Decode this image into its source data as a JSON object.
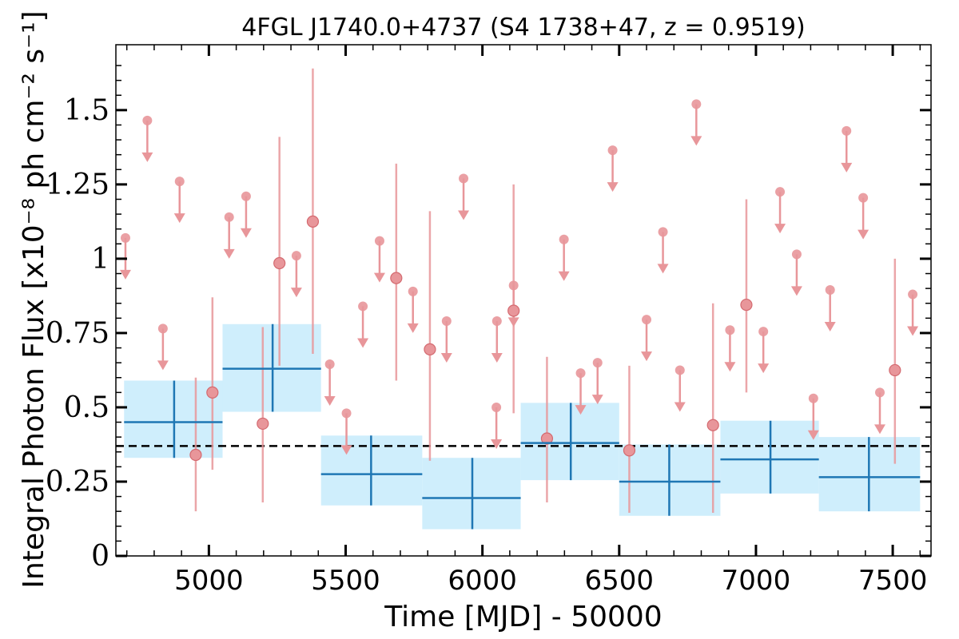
{
  "chart_data": {
    "type": "scatter",
    "title": "4FGL J1740.0+4737 (S4 1738+47, z = 0.9519)",
    "xlabel": "Time [MJD] - 50000",
    "ylabel": "Integral Photon Flux [x10⁻⁸ ph cm⁻² s⁻¹]",
    "xlim": [
      4660,
      7640
    ],
    "ylim": [
      0,
      1.72
    ],
    "x_ticks": [
      5000,
      5500,
      6000,
      6500,
      7000,
      7500
    ],
    "x_tick_labels": [
      "5000",
      "5500",
      "6000",
      "6500",
      "7000",
      "7500"
    ],
    "y_ticks": [
      0,
      0.25,
      0.5,
      0.75,
      1,
      1.25,
      1.5
    ],
    "y_tick_labels": [
      "0",
      "0.25",
      "0.5",
      "0.75",
      "1",
      "1.25",
      "1.5"
    ],
    "mean_flux": 0.37,
    "colors": {
      "bin_fill": "#cfeefc",
      "bin_line": "#1f77b4",
      "point": "#e8969a",
      "point_edge": "#d46a70",
      "mean_line": "#000000"
    },
    "binned": [
      {
        "x": 4873,
        "x_lo": 4690,
        "x_hi": 5050,
        "y": 0.45,
        "y_lo": 0.33,
        "y_hi": 0.59
      },
      {
        "x": 5233,
        "x_lo": 5050,
        "x_hi": 5410,
        "y": 0.63,
        "y_lo": 0.485,
        "y_hi": 0.78
      },
      {
        "x": 5593,
        "x_lo": 5410,
        "x_hi": 5780,
        "y": 0.275,
        "y_lo": 0.17,
        "y_hi": 0.405
      },
      {
        "x": 5963,
        "x_lo": 5780,
        "x_hi": 6140,
        "y": 0.195,
        "y_lo": 0.09,
        "y_hi": 0.33
      },
      {
        "x": 6323,
        "x_lo": 6140,
        "x_hi": 6500,
        "y": 0.38,
        "y_lo": 0.255,
        "y_hi": 0.515
      },
      {
        "x": 6683,
        "x_lo": 6500,
        "x_hi": 6870,
        "y": 0.25,
        "y_lo": 0.135,
        "y_hi": 0.375
      },
      {
        "x": 7053,
        "x_lo": 6870,
        "x_hi": 7230,
        "y": 0.325,
        "y_lo": 0.21,
        "y_hi": 0.455
      },
      {
        "x": 7413,
        "x_lo": 7230,
        "x_hi": 7600,
        "y": 0.265,
        "y_lo": 0.15,
        "y_hi": 0.4
      }
    ],
    "points": [
      {
        "x": 4952,
        "y": 0.34,
        "y_lo": 0.15,
        "y_hi": 0.6
      },
      {
        "x": 5013,
        "y": 0.55,
        "y_lo": 0.29,
        "y_hi": 0.87
      },
      {
        "x": 5197,
        "y": 0.445,
        "y_lo": 0.18,
        "y_hi": 0.77
      },
      {
        "x": 5258,
        "y": 0.985,
        "y_lo": 0.64,
        "y_hi": 1.41
      },
      {
        "x": 5380,
        "y": 1.125,
        "y_lo": 0.68,
        "y_hi": 1.64
      },
      {
        "x": 5685,
        "y": 0.935,
        "y_lo": 0.59,
        "y_hi": 1.32
      },
      {
        "x": 5808,
        "y": 0.695,
        "y_lo": 0.32,
        "y_hi": 1.16
      },
      {
        "x": 6114,
        "y": 0.825,
        "y_lo": 0.48,
        "y_hi": 1.25
      },
      {
        "x": 6236,
        "y": 0.395,
        "y_lo": 0.18,
        "y_hi": 0.67
      },
      {
        "x": 6537,
        "y": 0.355,
        "y_lo": 0.145,
        "y_hi": 0.64
      },
      {
        "x": 6843,
        "y": 0.44,
        "y_lo": 0.145,
        "y_hi": 0.85
      },
      {
        "x": 6965,
        "y": 0.845,
        "y_lo": 0.55,
        "y_hi": 1.2
      },
      {
        "x": 7508,
        "y": 0.625,
        "y_lo": 0.31,
        "y_hi": 1.0
      }
    ],
    "upper_limits": [
      {
        "x": 4695,
        "y": 1.07
      },
      {
        "x": 4775,
        "y": 1.465
      },
      {
        "x": 4832,
        "y": 0.765
      },
      {
        "x": 4893,
        "y": 1.26
      },
      {
        "x": 5074,
        "y": 1.14
      },
      {
        "x": 5136,
        "y": 1.21
      },
      {
        "x": 5320,
        "y": 1.01
      },
      {
        "x": 5442,
        "y": 0.645
      },
      {
        "x": 5503,
        "y": 0.48
      },
      {
        "x": 5563,
        "y": 0.84
      },
      {
        "x": 5624,
        "y": 1.06
      },
      {
        "x": 5746,
        "y": 0.89
      },
      {
        "x": 5869,
        "y": 0.79
      },
      {
        "x": 5931,
        "y": 1.27
      },
      {
        "x": 6053,
        "y": 0.79
      },
      {
        "x": 6114,
        "y": 0.91
      },
      {
        "x": 6051,
        "y": 0.5
      },
      {
        "x": 6298,
        "y": 1.065
      },
      {
        "x": 6359,
        "y": 0.615
      },
      {
        "x": 6421,
        "y": 0.65
      },
      {
        "x": 6476,
        "y": 1.365
      },
      {
        "x": 6600,
        "y": 0.795
      },
      {
        "x": 6660,
        "y": 1.09
      },
      {
        "x": 6722,
        "y": 0.625
      },
      {
        "x": 6782,
        "y": 1.52
      },
      {
        "x": 6905,
        "y": 0.76
      },
      {
        "x": 7027,
        "y": 0.755
      },
      {
        "x": 7088,
        "y": 1.225
      },
      {
        "x": 7149,
        "y": 1.015
      },
      {
        "x": 7210,
        "y": 0.53
      },
      {
        "x": 7271,
        "y": 0.895
      },
      {
        "x": 7331,
        "y": 1.43
      },
      {
        "x": 7392,
        "y": 1.205
      },
      {
        "x": 7453,
        "y": 0.55
      },
      {
        "x": 7573,
        "y": 0.88
      }
    ]
  }
}
